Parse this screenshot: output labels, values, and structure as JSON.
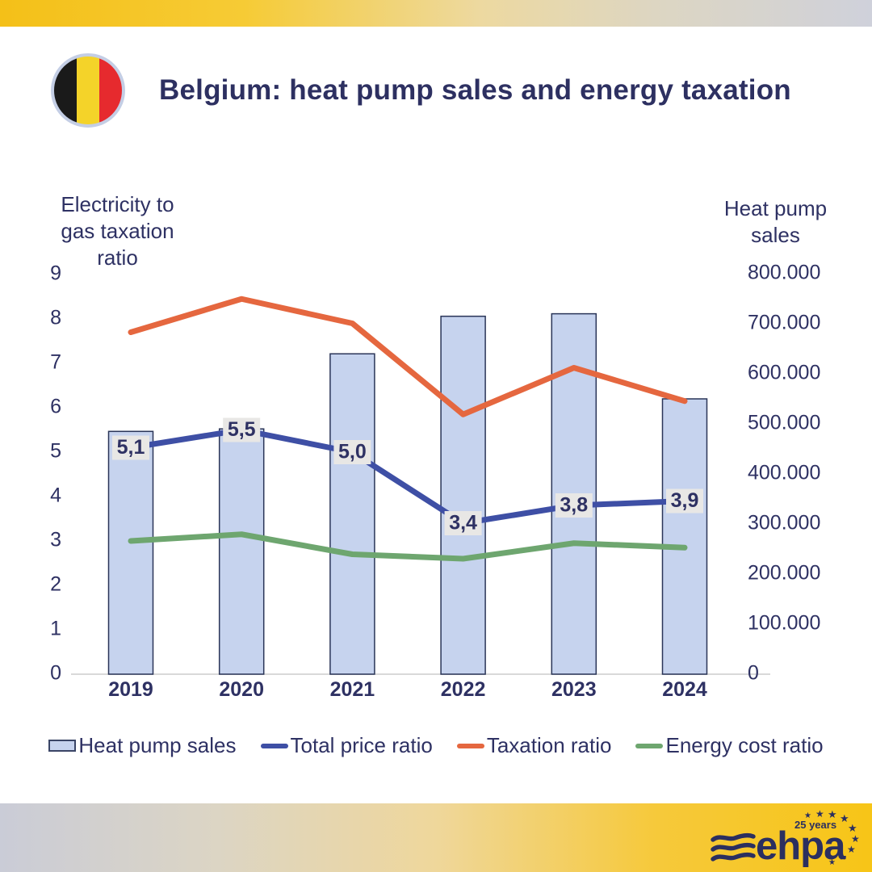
{
  "header": {
    "title": "Belgium: heat pump sales and energy taxation",
    "flag_colors": {
      "black": "#1A1A1A",
      "yellow": "#F4D329",
      "red": "#E62A2E",
      "ring": "#C4CEE5"
    }
  },
  "chart_data": {
    "type": "combo bar+line",
    "categories": [
      "2019",
      "2020",
      "2021",
      "2022",
      "2023",
      "2024"
    ],
    "left_axis": {
      "title_lines": [
        "Electricity to",
        "gas taxation",
        "ratio"
      ],
      "min": 0,
      "max": 9,
      "step": 1,
      "tick_labels_top_to_bottom": [
        "9",
        "8",
        "7",
        "6",
        "5",
        "4",
        "3",
        "2",
        "1",
        "0"
      ]
    },
    "right_axis": {
      "title_lines": [
        "Heat pump",
        "sales"
      ],
      "min": 0,
      "max": 800000,
      "step": 100000,
      "tick_labels_top_to_bottom": [
        "800.000",
        "700.000",
        "600.000",
        "500.000",
        "400.000",
        "300.000",
        "200.000",
        "100.000",
        "0"
      ]
    },
    "grid": "off",
    "legend_position": "bottom",
    "series": [
      {
        "name": "Heat pump sales",
        "type": "bar",
        "axis": "right",
        "fill": "#C6D3EE",
        "border": "#2A3558",
        "values": [
          485000,
          490000,
          640000,
          715000,
          720000,
          550000
        ]
      },
      {
        "name": "Total price ratio",
        "type": "line",
        "axis": "left",
        "color": "#3E4FA5",
        "values": [
          5.1,
          5.5,
          5.0,
          3.4,
          3.8,
          3.9
        ],
        "point_labels": [
          "5,1",
          "5,5",
          "5,0",
          "3,4",
          "3,8",
          "3,9"
        ],
        "label_bg": "#E8E7E5"
      },
      {
        "name": "Taxation ratio",
        "type": "line",
        "axis": "left",
        "color": "#E5673F",
        "values": [
          7.7,
          8.45,
          7.9,
          5.85,
          6.9,
          6.15
        ]
      },
      {
        "name": "Energy cost ratio",
        "type": "line",
        "axis": "left",
        "color": "#6EA66F",
        "values": [
          3.0,
          3.15,
          2.7,
          2.6,
          2.95,
          2.85
        ]
      }
    ]
  },
  "legend": {
    "items": [
      {
        "label": "Heat pump sales",
        "swatch": "bar",
        "fill": "#C6D3EE",
        "border": "#3A4566"
      },
      {
        "label": "Total price ratio",
        "swatch": "line",
        "color": "#3E4FA5"
      },
      {
        "label": "Taxation ratio",
        "swatch": "line",
        "color": "#E5673F"
      },
      {
        "label": "Energy cost ratio",
        "swatch": "line",
        "color": "#6EA66F"
      }
    ]
  },
  "footer": {
    "brand": "ehpa",
    "anniversary": "25 years",
    "logo_color": "#2B2F5F"
  }
}
